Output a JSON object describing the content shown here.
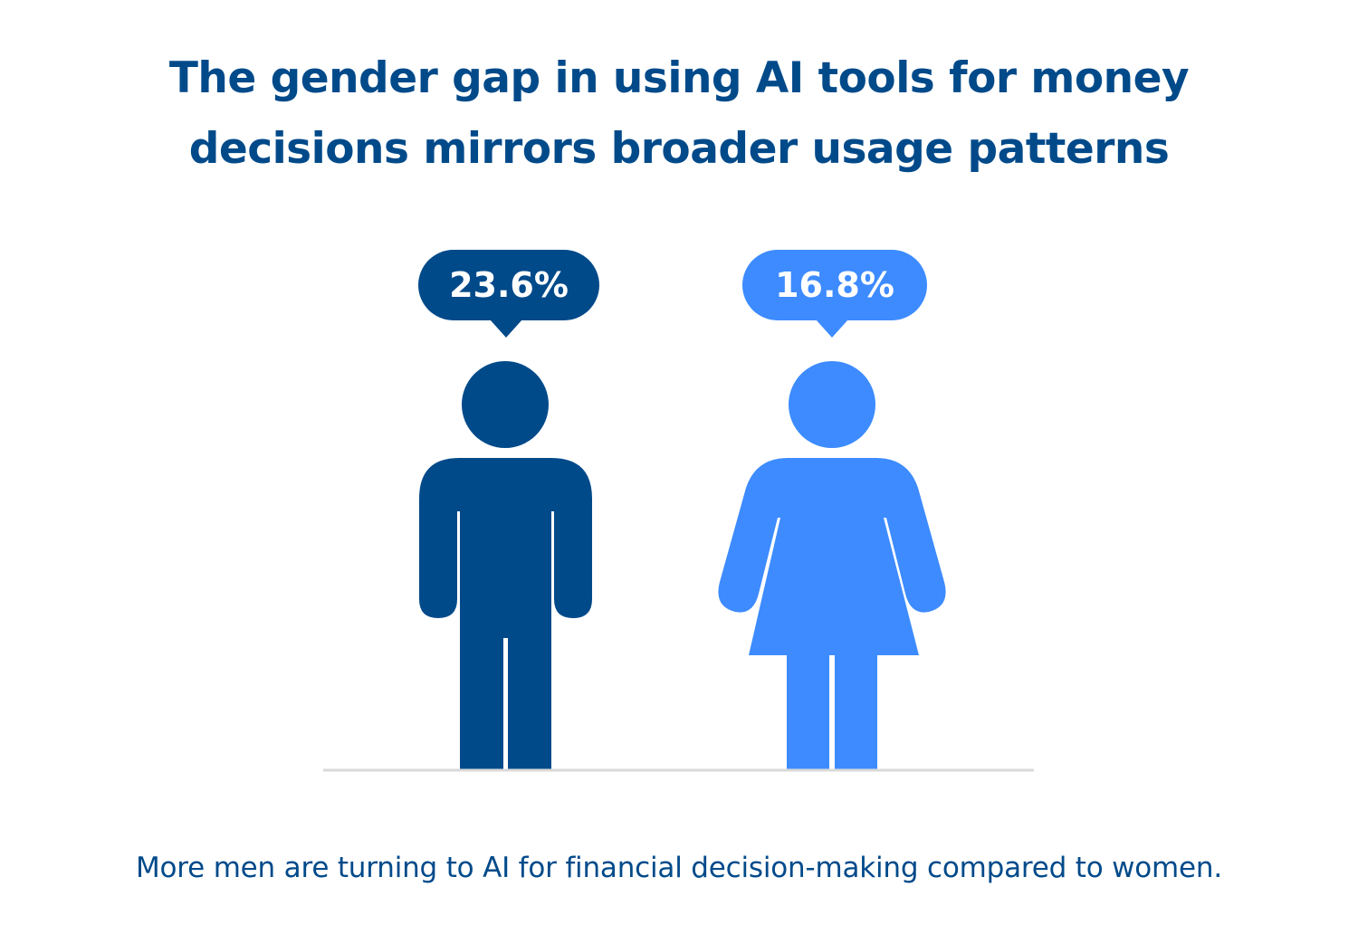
{
  "colors": {
    "men": "#004a8a",
    "women": "#3d8bff",
    "text": "#004a8a",
    "baseline": "#d9d9d9"
  },
  "title_lines": [
    "The gender gap in using AI tools for money",
    "decisions mirrors broader usage patterns"
  ],
  "caption": "More men are turning to AI for financial decision-making compared to women.",
  "chart_data": {
    "type": "bar",
    "categories": [
      "men",
      "women"
    ],
    "values": [
      23.6,
      16.8
    ],
    "unit": "%",
    "labels": [
      "23.6%",
      "16.8%"
    ],
    "icons": [
      "man-icon",
      "woman-icon"
    ],
    "title": "The gender gap in using AI tools for money decisions mirrors broader usage patterns",
    "subtitle": "More men are turning to AI for financial decision-making compared to women."
  }
}
